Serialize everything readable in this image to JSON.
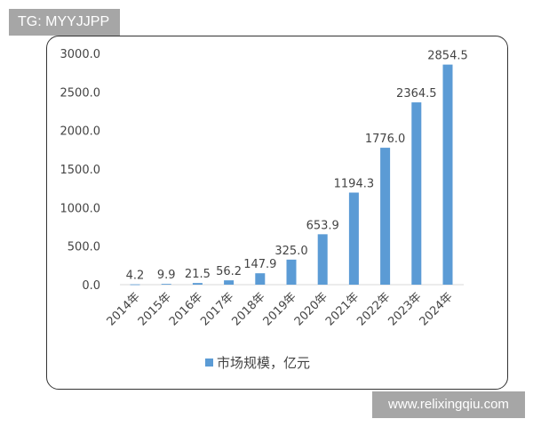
{
  "tag": "TG: MYYJJPP",
  "watermark": "www.relixingqiu.com",
  "chart_data": {
    "type": "bar",
    "categories": [
      "2014年",
      "2015年",
      "2016年",
      "2017年",
      "2018年",
      "2019年",
      "2020年",
      "2021年",
      "2022年",
      "2023年",
      "2024年"
    ],
    "series": [
      {
        "name": "市场规模，亿元",
        "values": [
          4.2,
          9.9,
          21.5,
          56.2,
          147.9,
          325.0,
          653.9,
          1194.3,
          1776.0,
          2364.5,
          2854.5
        ],
        "color": "#5b9bd5"
      }
    ],
    "data_labels": [
      "4.2",
      "9.9",
      "21.5",
      "56.2",
      "147.9",
      "325.0",
      "653.9",
      "1194.3",
      "1776.0",
      "2364.5",
      "2854.5"
    ],
    "yticks": [
      "0.0",
      "500.0",
      "1000.0",
      "1500.0",
      "2000.0",
      "2500.0",
      "3000.0"
    ],
    "ylim": [
      0,
      3000
    ],
    "legend": "bottom",
    "grid": false
  }
}
